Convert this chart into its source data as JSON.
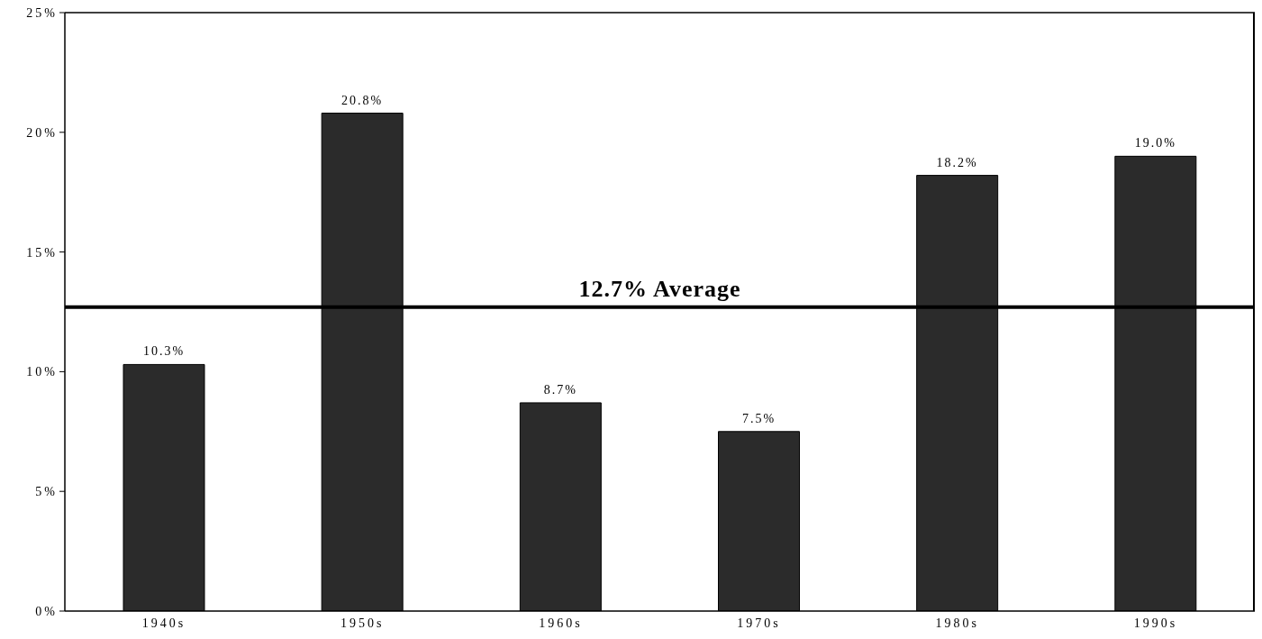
{
  "chart_data": {
    "type": "bar",
    "categories": [
      "1940s",
      "1950s",
      "1960s",
      "1970s",
      "1980s",
      "1990s"
    ],
    "values": [
      10.3,
      20.8,
      8.7,
      7.5,
      18.2,
      19.0
    ],
    "value_labels": [
      "10.3%",
      "20.8%",
      "8.7%",
      "7.5%",
      "18.2%",
      "19.0%"
    ],
    "color": "#2b2b2b",
    "ylim": [
      0,
      25
    ],
    "yticks": [
      {
        "value": 0,
        "label": "0%"
      },
      {
        "value": 5,
        "label": "5%"
      },
      {
        "value": 10,
        "label": "10%"
      },
      {
        "value": 15,
        "label": "15%"
      },
      {
        "value": 20,
        "label": "20%"
      },
      {
        "value": 25,
        "label": "25%"
      }
    ],
    "ref_lines": [
      {
        "axis": "y",
        "value": 12.7,
        "label": "12.7% Average",
        "color": "#000000"
      }
    ],
    "grid": false,
    "legend": false
  }
}
